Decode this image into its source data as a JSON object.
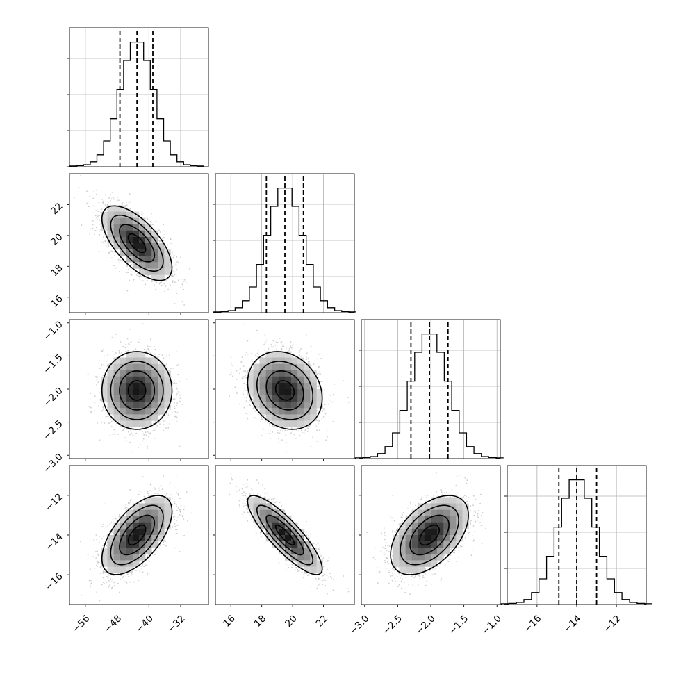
{
  "chart_data": {
    "type": "corner",
    "grid": true,
    "parameters": [
      {
        "ticks": [
          -56,
          -48,
          -40,
          -32
        ],
        "tick_labels": [
          "−56",
          "−48",
          "−40",
          "−32"
        ],
        "range": [
          -60,
          -25
        ],
        "mean": -43.0,
        "sigma": 4.2,
        "quantiles": [
          -47.3,
          -43.0,
          -39.0
        ]
      },
      {
        "ticks": [
          16,
          18,
          20,
          22
        ],
        "tick_labels": [
          "16",
          "18",
          "20",
          "22"
        ],
        "range": [
          15.0,
          24.0
        ],
        "mean": 19.5,
        "sigma": 1.15,
        "quantiles": [
          18.3,
          19.5,
          20.7
        ]
      },
      {
        "ticks": [
          -3.0,
          -2.5,
          -2.0,
          -1.5,
          -1.0
        ],
        "tick_labels": [
          "−3.0",
          "−2.5",
          "−2.0",
          "−1.5",
          "−1.0"
        ],
        "range": [
          -3.05,
          -0.95
        ],
        "mean": -2.02,
        "sigma": 0.28,
        "quantiles": [
          -2.3,
          -2.02,
          -1.74
        ]
      },
      {
        "ticks": [
          -16,
          -14,
          -12
        ],
        "tick_labels": [
          "−16",
          "−14",
          "−12"
        ],
        "range": [
          -17.5,
          -10.5
        ],
        "mean": -14.0,
        "sigma": 0.95,
        "quantiles": [
          -14.9,
          -14.0,
          -13.0
        ]
      }
    ],
    "correlations": [
      [
        1,
        -0.65,
        0.0,
        0.6
      ],
      [
        -0.65,
        1,
        -0.2,
        -0.85
      ],
      [
        0.0,
        -0.2,
        1,
        0.5
      ],
      [
        0.6,
        -0.85,
        0.5,
        1
      ]
    ],
    "histogram_bins": 20,
    "contour_levels_sigma": [
      0.5,
      1.0,
      1.5,
      2.0
    ],
    "colors": {
      "contour": "#000000",
      "scatter": "#bdbdbd",
      "density": "#000000",
      "grid": "#b0b0b0"
    }
  }
}
